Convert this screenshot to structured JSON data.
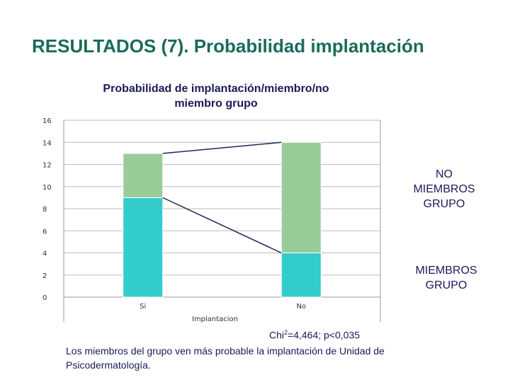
{
  "slide": {
    "title": "RESULTADOS (7). Probabilidad implantación"
  },
  "chart_data": {
    "type": "bar",
    "stacked": true,
    "title": "Probabilidad de implantación/miembro/no miembro grupo",
    "xlabel": "Implantacion",
    "ylabel": "",
    "categories": [
      "Si",
      "No"
    ],
    "series": [
      {
        "name": "MIEMBROS GRUPO",
        "values": [
          9,
          4
        ],
        "color": "#33cccc"
      },
      {
        "name": "NO MIEMBROS GRUPO",
        "values": [
          4,
          10
        ],
        "color": "#99cc99"
      }
    ],
    "ylim": [
      0,
      16
    ],
    "yticks": [
      0,
      2,
      4,
      6,
      8,
      10,
      12,
      14,
      16
    ],
    "grid": true,
    "legend_position": "right",
    "line_color": "#1a2a5a"
  },
  "legend": {
    "no_miembros": "NO MIEMBROS GRUPO",
    "miembros": "MIEMBROS GRUPO"
  },
  "stats": {
    "prefix": "Chi",
    "superscript": "2",
    "suffix": "=4,464; p<0,035"
  },
  "conclusion": "Los miembros del grupo ven más probable la implantación de Unidad de Psicodermatología."
}
